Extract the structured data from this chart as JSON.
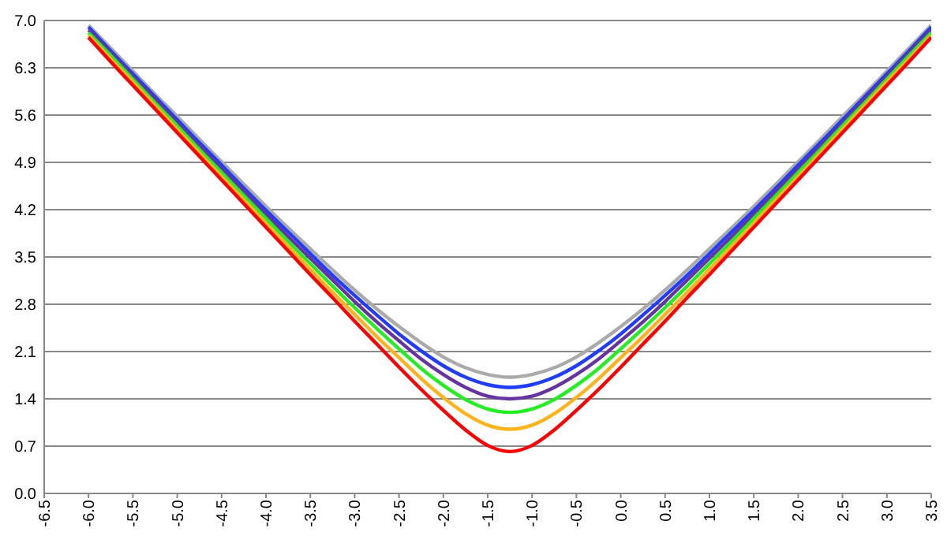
{
  "chart_data": {
    "type": "line",
    "grid": "y",
    "x": [
      -6,
      -5.75,
      -5.5,
      -5.25,
      -5,
      -4.75,
      -4.5,
      -4.25,
      -4,
      -3.75,
      -3.5,
      -3.25,
      -3,
      -2.75,
      -2.5,
      -2.25,
      -2,
      -1.75,
      -1.5,
      -1.25,
      -1,
      -0.75,
      -0.5,
      -0.25,
      0,
      0.25,
      0.5,
      0.75,
      1,
      1.25,
      1.5,
      1.75,
      2,
      2.25,
      2.5,
      2.75,
      3,
      3.25,
      3.5
    ],
    "xlim": [
      -6.5,
      3.5
    ],
    "xticks": [
      {
        "value": -6.5,
        "label": "-6.5"
      },
      {
        "value": -6,
        "label": "-6.0"
      },
      {
        "value": -5.5,
        "label": "-5.5"
      },
      {
        "value": -5,
        "label": "-5.0"
      },
      {
        "value": -4.5,
        "label": "-4.5"
      },
      {
        "value": -4,
        "label": "-4.0"
      },
      {
        "value": -3.5,
        "label": "-3.5"
      },
      {
        "value": -3,
        "label": "-3.0"
      },
      {
        "value": -2.5,
        "label": "-2.5"
      },
      {
        "value": -2,
        "label": "-2.0"
      },
      {
        "value": -1.5,
        "label": "-1.5"
      },
      {
        "value": -1,
        "label": "-1.0"
      },
      {
        "value": -0.5,
        "label": "-0.5"
      },
      {
        "value": 0,
        "label": "0.0"
      },
      {
        "value": 0.5,
        "label": "0.5"
      },
      {
        "value": 1,
        "label": "1.0"
      },
      {
        "value": 1.5,
        "label": "1.5"
      },
      {
        "value": 2,
        "label": "2.0"
      },
      {
        "value": 2.5,
        "label": "2.5"
      },
      {
        "value": 3,
        "label": "3.0"
      },
      {
        "value": 3.5,
        "label": "3.5"
      }
    ],
    "ylim": [
      0,
      7
    ],
    "yticks": [
      {
        "value": 0,
        "label": "0.0"
      },
      {
        "value": 0.7,
        "label": "0.7"
      },
      {
        "value": 1.4,
        "label": "1.4"
      },
      {
        "value": 2.1,
        "label": "2.1"
      },
      {
        "value": 2.8,
        "label": "2.8"
      },
      {
        "value": 3.5,
        "label": "3.5"
      },
      {
        "value": 4.2,
        "label": "4.2"
      },
      {
        "value": 4.9,
        "label": "4.9"
      },
      {
        "value": 5.6,
        "label": "5.6"
      },
      {
        "value": 6.3,
        "label": "6.3"
      },
      {
        "value": 7,
        "label": "7.0"
      }
    ],
    "series": [
      {
        "color": "#aaaaaa",
        "values": [
          6.93,
          6.59,
          6.25,
          5.91,
          5.58,
          5.24,
          4.91,
          4.58,
          4.25,
          3.93,
          3.62,
          3.31,
          3.01,
          2.73,
          2.47,
          2.23,
          2.02,
          1.86,
          1.76,
          1.72,
          1.76,
          1.86,
          2.02,
          2.23,
          2.47,
          2.73,
          3.01,
          3.31,
          3.62,
          3.93,
          4.25,
          4.58,
          4.91,
          5.24,
          5.58,
          5.91,
          6.25,
          6.59,
          6.93
        ]
      },
      {
        "color": "#1f3cff",
        "values": [
          6.9,
          6.55,
          6.21,
          5.87,
          5.53,
          5.19,
          4.86,
          4.52,
          4.19,
          3.87,
          3.55,
          3.23,
          2.93,
          2.64,
          2.36,
          2.11,
          1.89,
          1.72,
          1.61,
          1.57,
          1.61,
          1.72,
          1.89,
          2.11,
          2.36,
          2.64,
          2.93,
          3.23,
          3.55,
          3.87,
          4.19,
          4.52,
          4.86,
          5.19,
          5.53,
          5.87,
          6.21,
          6.55,
          6.9
        ]
      },
      {
        "color": "#6633a0",
        "values": [
          6.86,
          6.52,
          6.17,
          5.83,
          5.48,
          5.14,
          4.8,
          4.47,
          4.13,
          3.8,
          3.48,
          3.16,
          2.84,
          2.54,
          2.26,
          1.99,
          1.76,
          1.57,
          1.44,
          1.4,
          1.44,
          1.57,
          1.76,
          1.99,
          2.26,
          2.54,
          2.84,
          3.16,
          3.48,
          3.8,
          4.13,
          4.47,
          4.8,
          5.14,
          5.48,
          5.83,
          6.17,
          6.52,
          6.86
        ]
      },
      {
        "color": "#22ee22",
        "values": [
          6.82,
          6.48,
          6.13,
          5.78,
          5.44,
          5.09,
          4.75,
          4.41,
          4.07,
          3.73,
          3.4,
          3.07,
          2.75,
          2.44,
          2.14,
          1.85,
          1.6,
          1.39,
          1.25,
          1.2,
          1.25,
          1.39,
          1.6,
          1.85,
          2.14,
          2.44,
          2.75,
          3.07,
          3.4,
          3.73,
          4.07,
          4.41,
          4.75,
          5.09,
          5.44,
          5.78,
          6.13,
          6.48,
          6.82
        ]
      },
      {
        "color": "#ffb31a",
        "values": [
          6.78,
          6.43,
          6.09,
          5.74,
          5.39,
          5.04,
          4.69,
          4.35,
          4,
          3.66,
          3.32,
          2.98,
          2.65,
          2.32,
          2.01,
          1.7,
          1.42,
          1.18,
          1.01,
          0.95,
          1.01,
          1.18,
          1.42,
          1.7,
          2.01,
          2.32,
          2.65,
          2.98,
          3.32,
          3.66,
          4,
          4.35,
          4.69,
          5.04,
          5.39,
          5.74,
          6.09,
          6.43,
          6.78
        ]
      },
      {
        "color": "#ff0000",
        "values": [
          6.75,
          6.39,
          6.04,
          5.69,
          5.34,
          4.99,
          4.64,
          4.29,
          3.94,
          3.59,
          3.24,
          2.9,
          2.55,
          2.21,
          1.87,
          1.54,
          1.23,
          0.94,
          0.71,
          0.62,
          0.71,
          0.94,
          1.23,
          1.54,
          1.87,
          2.21,
          2.55,
          2.9,
          3.24,
          3.59,
          3.94,
          4.29,
          4.64,
          4.99,
          5.34,
          5.69,
          6.04,
          6.39,
          6.75
        ]
      }
    ]
  }
}
